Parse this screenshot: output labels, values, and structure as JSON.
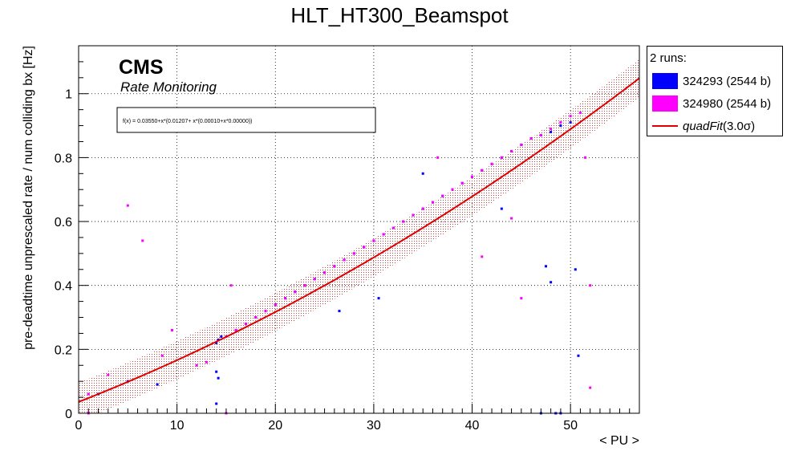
{
  "chart_data": {
    "type": "scatter",
    "title": "HLT_HT300_Beamspot",
    "xlabel": "< PU >",
    "ylabel": "pre-deadtime unprescaled rate / num colliding bx [Hz]",
    "xlim": [
      0,
      57
    ],
    "ylim": [
      0,
      1.15
    ],
    "x_ticks": [
      0,
      10,
      20,
      30,
      40,
      50
    ],
    "y_ticks": [
      0,
      0.2,
      0.4,
      0.6,
      0.8,
      1
    ],
    "grid": true,
    "cms_label": "CMS",
    "cms_sublabel": "Rate Monitoring",
    "fit_formula": "f(x) = 0.03550+x*(0.01207+ x*(0.00010+x*0.00000))",
    "fit": {
      "c0": 0.0355,
      "c1": 0.01207,
      "c2": 0.0001,
      "c3": 0.0,
      "band_sigma": 3.0,
      "band_halfwidth": 0.06
    },
    "legend": {
      "position": "outside-right",
      "header": "2 runs:",
      "entries": [
        {
          "label": "324293 (2544 b)",
          "color": "#0000ff"
        },
        {
          "label": "324980 (2544 b)",
          "color": "#ff00ff"
        },
        {
          "label": "quadFit(3.0σ)",
          "label_main": "quadFit",
          "label_sigma": "(3.0σ)",
          "color": "#e00000"
        }
      ]
    },
    "series": [
      {
        "name": "324293 (2544 b)",
        "color": "#0000ff",
        "x": [
          14.0,
          14.2,
          14.5,
          15.0,
          16.0,
          17.0,
          18.0,
          19.0,
          20.0,
          21.0,
          22.0,
          23.0,
          24.0,
          25.0,
          26.0,
          27.0,
          28.0,
          29.0,
          30.0,
          31.0,
          32.0,
          33.0,
          34.0,
          35.0,
          36.0,
          37.0,
          38.0,
          39.0,
          40.0,
          41.0,
          42.0,
          43.0,
          44.0,
          45.0,
          46.0,
          47.0,
          48.0,
          49.0,
          50.0,
          2.0,
          5.0,
          8.0,
          14.0,
          14.2,
          26.5,
          30.5,
          35.0,
          43.0,
          47.5,
          48.0,
          48.5,
          50.5,
          50.8,
          14.0,
          47.0,
          48.5,
          49.0
        ],
        "y": [
          0.22,
          0.23,
          0.24,
          0.24,
          0.26,
          0.28,
          0.3,
          0.32,
          0.34,
          0.36,
          0.38,
          0.4,
          0.42,
          0.44,
          0.46,
          0.48,
          0.5,
          0.52,
          0.54,
          0.56,
          0.58,
          0.6,
          0.62,
          0.64,
          0.66,
          0.68,
          0.7,
          0.72,
          0.74,
          0.76,
          0.78,
          0.8,
          0.82,
          0.84,
          0.86,
          0.87,
          0.88,
          0.9,
          0.91,
          0.06,
          0.1,
          0.09,
          0.13,
          0.11,
          0.32,
          0.36,
          0.75,
          0.64,
          0.46,
          0.41,
          0.0,
          0.45,
          0.18,
          0.03,
          0.0,
          0.0,
          0.0
        ]
      },
      {
        "name": "324980 (2544 b)",
        "color": "#ff00ff",
        "x": [
          15.0,
          16.0,
          17.0,
          18.0,
          19.0,
          20.0,
          21.0,
          22.0,
          23.0,
          24.0,
          25.0,
          26.0,
          27.0,
          28.0,
          29.0,
          30.0,
          31.0,
          32.0,
          33.0,
          34.0,
          35.0,
          36.0,
          37.0,
          38.0,
          39.0,
          40.0,
          41.0,
          42.0,
          43.0,
          44.0,
          45.0,
          46.0,
          47.0,
          48.0,
          49.0,
          50.0,
          51.0,
          1.0,
          3.0,
          5.0,
          6.5,
          8.5,
          9.5,
          12.0,
          13.0,
          15.5,
          36.5,
          41.0,
          44.0,
          45.0,
          51.5,
          52.0,
          52.0,
          15.0,
          1.0
        ],
        "y": [
          0.24,
          0.26,
          0.28,
          0.3,
          0.32,
          0.34,
          0.36,
          0.38,
          0.4,
          0.42,
          0.44,
          0.46,
          0.48,
          0.5,
          0.52,
          0.54,
          0.56,
          0.58,
          0.6,
          0.62,
          0.64,
          0.66,
          0.68,
          0.7,
          0.72,
          0.74,
          0.76,
          0.78,
          0.8,
          0.82,
          0.84,
          0.86,
          0.87,
          0.89,
          0.91,
          0.93,
          0.94,
          0.06,
          0.12,
          0.65,
          0.54,
          0.18,
          0.26,
          0.15,
          0.16,
          0.4,
          0.8,
          0.49,
          0.61,
          0.36,
          0.8,
          0.4,
          0.08,
          0.0,
          0.0
        ]
      },
      {
        "name": "quadFit(3.0σ)",
        "color": "#e00000",
        "function": "quadratic"
      }
    ]
  }
}
